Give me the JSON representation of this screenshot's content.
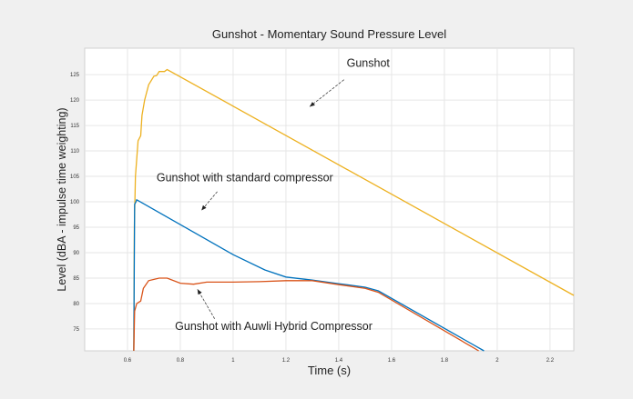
{
  "chart_data": {
    "type": "line",
    "title": "Gunshot - Momentary Sound Pressure Level",
    "xlabel": "Time (s)",
    "ylabel": "Level (dBA - impulse time weighting)",
    "xlim": [
      0.438,
      2.29
    ],
    "ylim": [
      70.7,
      130.2
    ],
    "xticks": [
      0.6,
      0.8,
      1,
      1.2,
      1.4,
      1.6,
      1.8,
      2,
      2.2
    ],
    "xtick_labels": [
      "0.6",
      "0.8",
      "1",
      "1.2",
      "1.4",
      "1.6",
      "1.8",
      "2",
      "2.2"
    ],
    "yticks": [
      75,
      80,
      85,
      90,
      95,
      100,
      105,
      110,
      115,
      120,
      125
    ],
    "ytick_labels": [
      "75",
      "80",
      "85",
      "90",
      "95",
      "100",
      "105",
      "110",
      "115",
      "120",
      "125"
    ],
    "grid": true,
    "series": [
      {
        "name": "Gunshot",
        "color": "#edb120",
        "x": [
          0.624,
          0.626,
          0.63,
          0.64,
          0.65,
          0.655,
          0.665,
          0.68,
          0.7,
          0.71,
          0.72,
          0.74,
          0.75,
          2.29
        ],
        "y": [
          70.7,
          95,
          105,
          112,
          113,
          117,
          120,
          123,
          124.7,
          124.8,
          125.6,
          125.6,
          126,
          81.6
        ]
      },
      {
        "name": "Gunshot with standard compressor",
        "color": "#0072bd",
        "x": [
          0.624,
          0.627,
          0.632,
          0.635,
          1.0,
          1.12,
          1.2,
          1.3,
          1.4,
          1.5,
          1.55,
          1.95
        ],
        "y": [
          70.7,
          99.5,
          100,
          100.4,
          89.6,
          86.6,
          85.2,
          84.6,
          83.9,
          83.2,
          82.5,
          70.7
        ]
      },
      {
        "name": "Gunshot with Auwli Hybrid Compressor",
        "color": "#d95319",
        "x": [
          0.624,
          0.627,
          0.635,
          0.65,
          0.66,
          0.68,
          0.72,
          0.75,
          0.8,
          0.85,
          0.9,
          1.0,
          1.1,
          1.2,
          1.3,
          1.4,
          1.5,
          1.55,
          1.93
        ],
        "y": [
          70.7,
          78.5,
          80,
          80.5,
          83,
          84.5,
          85,
          85,
          84,
          83.8,
          84.2,
          84.2,
          84.3,
          84.5,
          84.5,
          83.7,
          83,
          82.2,
          70.7
        ]
      }
    ],
    "annotations": [
      {
        "text": "Gunshot",
        "x": 1.43,
        "y": 126.5,
        "ax": 1.42,
        "ay": 124,
        "tx": 1.29,
        "ty": 118.7
      },
      {
        "text": "Gunshot with standard compressor",
        "x": 0.71,
        "y": 104,
        "ax": 0.94,
        "ay": 102,
        "tx": 0.88,
        "ty": 98.3
      },
      {
        "text": "Gunshot with Auwli Hybrid Compressor",
        "x": 0.78,
        "y": 74.8,
        "ax": 0.93,
        "ay": 77,
        "tx": 0.865,
        "ty": 82.8
      }
    ]
  }
}
